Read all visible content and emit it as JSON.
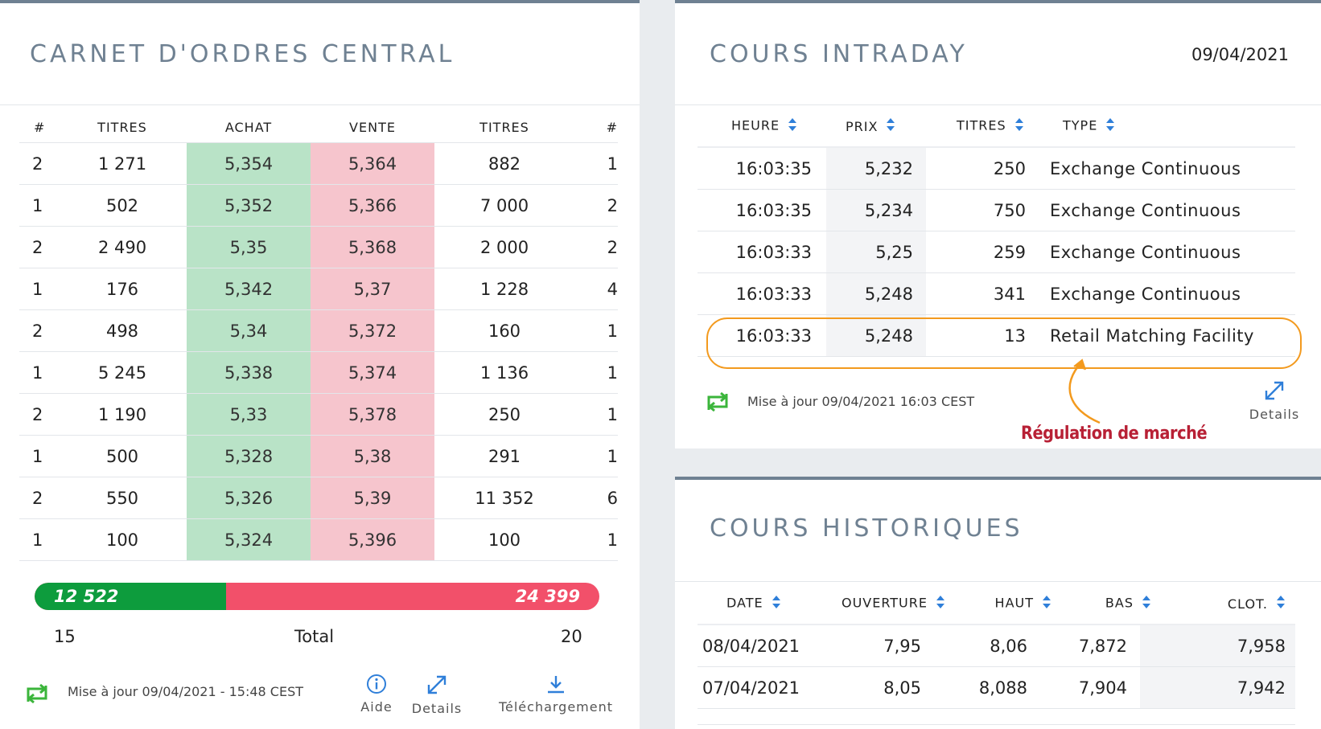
{
  "order_book": {
    "title": "CARNET D'ORDRES CENTRAL",
    "headers": [
      "#",
      "TITRES",
      "ACHAT",
      "VENTE",
      "TITRES",
      "#"
    ],
    "rows": [
      [
        "2",
        "1 271",
        "5,354",
        "5,364",
        "882",
        "1"
      ],
      [
        "1",
        "502",
        "5,352",
        "5,366",
        "7 000",
        "2"
      ],
      [
        "2",
        "2 490",
        "5,35",
        "5,368",
        "2 000",
        "2"
      ],
      [
        "1",
        "176",
        "5,342",
        "5,37",
        "1 228",
        "4"
      ],
      [
        "2",
        "498",
        "5,34",
        "5,372",
        "160",
        "1"
      ],
      [
        "1",
        "5 245",
        "5,338",
        "5,374",
        "1 136",
        "1"
      ],
      [
        "2",
        "1 190",
        "5,33",
        "5,378",
        "250",
        "1"
      ],
      [
        "1",
        "500",
        "5,328",
        "5,38",
        "291",
        "1"
      ],
      [
        "2",
        "550",
        "5,326",
        "5,39",
        "11 352",
        "6"
      ],
      [
        "1",
        "100",
        "5,324",
        "5,396",
        "100",
        "1"
      ]
    ],
    "buy_total": "12 522",
    "sell_total": "24 399",
    "buy_share": 0.339,
    "buy_count": "15",
    "total_label": "Total",
    "sell_count": "20",
    "update_text": "Mise à jour 09/04/2021 - 15:48 CEST",
    "aide_label": "Aide",
    "details_label": "Details",
    "download_label": "Téléchargement"
  },
  "intraday": {
    "title": "COURS INTRADAY",
    "date": "09/04/2021",
    "headers": [
      "HEURE",
      "PRIX",
      "TITRES",
      "TYPE"
    ],
    "rows": [
      [
        "16:03:35",
        "5,232",
        "250",
        "Exchange Continuous"
      ],
      [
        "16:03:35",
        "5,234",
        "750",
        "Exchange Continuous"
      ],
      [
        "16:03:33",
        "5,25",
        "259",
        "Exchange Continuous"
      ],
      [
        "16:03:33",
        "5,248",
        "341",
        "Exchange Continuous"
      ],
      [
        "16:03:33",
        "5,248",
        "13",
        "Retail Matching Facility"
      ]
    ],
    "update_text": "Mise à jour 09/04/2021 16:03 CEST",
    "details_label": "Details",
    "annotation": "Régulation de marché"
  },
  "historical": {
    "title": "COURS HISTORIQUES",
    "headers": [
      "DATE",
      "OUVERTURE",
      "HAUT",
      "BAS",
      "CLOT."
    ],
    "rows": [
      [
        "08/04/2021",
        "7,95",
        "8,06",
        "7,872",
        "7,958"
      ],
      [
        "07/04/2021",
        "8,05",
        "8,088",
        "7,904",
        "7,942"
      ]
    ]
  },
  "colors": {
    "buy_cell": "#b9e3c7",
    "sell_cell": "#f6c5cd",
    "buy_bar": "#0d9c3d",
    "sell_bar": "#f2506a",
    "accent_blue": "#2f7fd9",
    "refresh_green": "#3bb53b",
    "highlight_orange": "#f39a1e",
    "annotation_red": "#b82035"
  }
}
